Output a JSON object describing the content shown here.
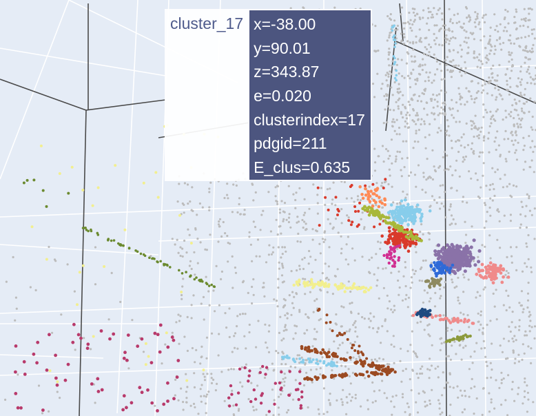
{
  "chart_data": {
    "type": "scatter3d",
    "background": "#e5ecf6",
    "grid": true,
    "hover": {
      "trace_name": "cluster_17",
      "lines": [
        "x=-38.00",
        "y=90.01",
        "z=343.87",
        "e=0.020",
        "clusterindex=17",
        "pdgid=211",
        "E_clus=0.635"
      ],
      "box_color": "#4c557f",
      "name_color": "#4f5b8c"
    },
    "series": [
      {
        "color": "#bcbcbc"
      },
      {
        "color": "#8c9a3c"
      },
      {
        "color": "#f2ef8f"
      },
      {
        "color": "#b83a6b"
      },
      {
        "color": "#9b4a22"
      },
      {
        "color": "#87cdeb"
      },
      {
        "color": "#d93a2b"
      },
      {
        "color": "#a8b83a"
      },
      {
        "color": "#8a72a8"
      },
      {
        "color": "#f08a8a"
      },
      {
        "color": "#2e6ad8"
      },
      {
        "color": "#1f4a80"
      },
      {
        "color": "#ff8a55"
      },
      {
        "color": "#8e8a60"
      },
      {
        "color": "#d12f92"
      },
      {
        "color": "#6b8a2f"
      }
    ]
  }
}
